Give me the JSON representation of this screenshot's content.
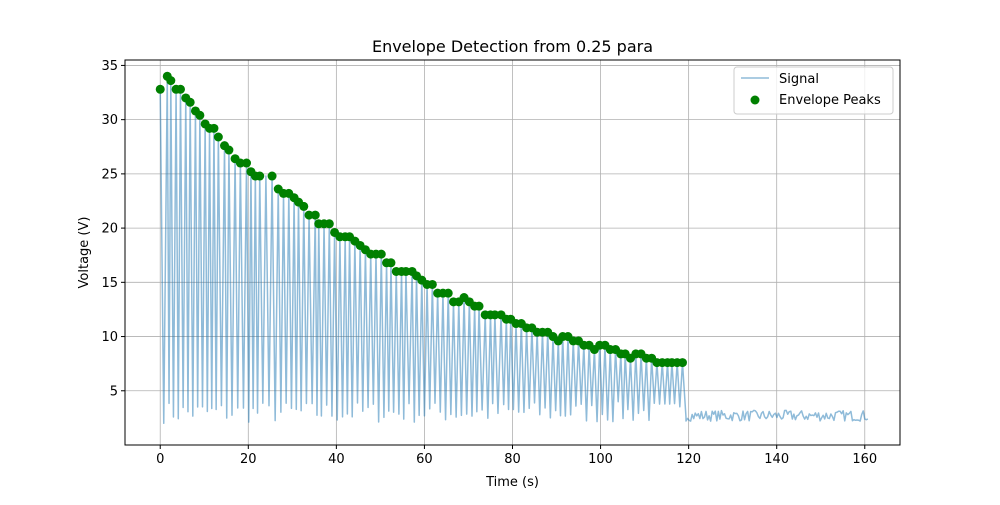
{
  "chart_data": {
    "type": "line",
    "title": "Envelope Detection from 0.25 para",
    "xlabel": "Time (s)",
    "ylabel": "Voltage (V)",
    "xlim": [
      -8,
      168
    ],
    "ylim": [
      0,
      35.5
    ],
    "xticks": [
      0,
      20,
      40,
      60,
      80,
      100,
      120,
      140,
      160
    ],
    "yticks": [
      5,
      10,
      15,
      20,
      25,
      30,
      35
    ],
    "grid": true,
    "legend": {
      "position": "top-right",
      "entries": [
        "Signal",
        "Envelope Peaks"
      ]
    },
    "series": [
      {
        "name": "Signal",
        "kind": "line",
        "color": "#1f77b4",
        "alpha": 0.5,
        "description": "oscillating signal, one cycle per ~1.6 s, peaks follow the envelope down to t≈119 s, then flat noise 2.2–3.2 V until t≈161 s",
        "period": 1.6,
        "active_end": 119.4,
        "end": 161,
        "trough_range": [
          2.0,
          4.0
        ],
        "noise_range": [
          2.2,
          3.2
        ]
      },
      {
        "name": "Envelope Peaks",
        "kind": "scatter",
        "color": "#008000",
        "points": [
          [
            0.0,
            32.8
          ],
          [
            1.6,
            34.0
          ],
          [
            2.4,
            33.6
          ],
          [
            3.6,
            32.8
          ],
          [
            4.6,
            32.8
          ],
          [
            5.8,
            32.0
          ],
          [
            6.8,
            31.6
          ],
          [
            8.0,
            30.8
          ],
          [
            9.0,
            30.4
          ],
          [
            10.2,
            29.6
          ],
          [
            11.2,
            29.2
          ],
          [
            12.2,
            29.2
          ],
          [
            13.2,
            28.4
          ],
          [
            14.6,
            27.6
          ],
          [
            15.6,
            27.2
          ],
          [
            17.0,
            26.4
          ],
          [
            18.2,
            26.0
          ],
          [
            19.6,
            26.0
          ],
          [
            20.6,
            25.2
          ],
          [
            21.6,
            24.8
          ],
          [
            22.6,
            24.8
          ],
          [
            25.4,
            24.8
          ],
          [
            26.8,
            23.6
          ],
          [
            28.0,
            23.2
          ],
          [
            29.2,
            23.2
          ],
          [
            30.4,
            22.8
          ],
          [
            31.4,
            22.4
          ],
          [
            32.6,
            22.0
          ],
          [
            33.8,
            21.2
          ],
          [
            35.2,
            21.2
          ],
          [
            36.0,
            20.4
          ],
          [
            37.2,
            20.4
          ],
          [
            38.4,
            20.4
          ],
          [
            39.6,
            19.6
          ],
          [
            40.8,
            19.2
          ],
          [
            42.0,
            19.2
          ],
          [
            43.0,
            19.2
          ],
          [
            44.2,
            18.8
          ],
          [
            45.4,
            18.4
          ],
          [
            46.6,
            18.0
          ],
          [
            47.8,
            17.6
          ],
          [
            49.0,
            17.6
          ],
          [
            50.2,
            17.6
          ],
          [
            51.4,
            16.8
          ],
          [
            52.4,
            16.8
          ],
          [
            53.6,
            16.0
          ],
          [
            54.8,
            16.0
          ],
          [
            55.8,
            16.0
          ],
          [
            57.2,
            16.0
          ],
          [
            58.2,
            15.6
          ],
          [
            59.4,
            15.2
          ],
          [
            60.6,
            14.8
          ],
          [
            61.8,
            14.8
          ],
          [
            63.0,
            14.0
          ],
          [
            64.2,
            14.0
          ],
          [
            65.4,
            14.0
          ],
          [
            66.6,
            13.2
          ],
          [
            67.8,
            13.2
          ],
          [
            69.0,
            13.6
          ],
          [
            70.2,
            13.2
          ],
          [
            71.4,
            12.8
          ],
          [
            72.4,
            12.8
          ],
          [
            73.8,
            12.0
          ],
          [
            75.0,
            12.0
          ],
          [
            76.0,
            12.0
          ],
          [
            77.4,
            12.0
          ],
          [
            78.6,
            11.6
          ],
          [
            79.6,
            11.6
          ],
          [
            80.8,
            11.2
          ],
          [
            82.0,
            11.2
          ],
          [
            83.2,
            10.8
          ],
          [
            84.4,
            10.8
          ],
          [
            85.6,
            10.4
          ],
          [
            86.8,
            10.4
          ],
          [
            88.0,
            10.4
          ],
          [
            89.2,
            10.0
          ],
          [
            90.4,
            9.6
          ],
          [
            91.4,
            10.0
          ],
          [
            92.6,
            10.0
          ],
          [
            93.8,
            9.6
          ],
          [
            95.0,
            9.6
          ],
          [
            96.2,
            9.2
          ],
          [
            97.4,
            9.2
          ],
          [
            98.6,
            8.8
          ],
          [
            99.8,
            9.2
          ],
          [
            101.0,
            9.2
          ],
          [
            102.2,
            8.8
          ],
          [
            103.4,
            8.8
          ],
          [
            104.6,
            8.4
          ],
          [
            105.6,
            8.4
          ],
          [
            106.8,
            8.0
          ],
          [
            108.0,
            8.4
          ],
          [
            109.2,
            8.4
          ],
          [
            110.4,
            8.0
          ],
          [
            111.6,
            8.0
          ],
          [
            112.8,
            7.6
          ],
          [
            114.0,
            7.6
          ],
          [
            115.2,
            7.6
          ],
          [
            116.2,
            7.6
          ],
          [
            117.4,
            7.6
          ],
          [
            118.6,
            7.6
          ]
        ]
      }
    ]
  }
}
